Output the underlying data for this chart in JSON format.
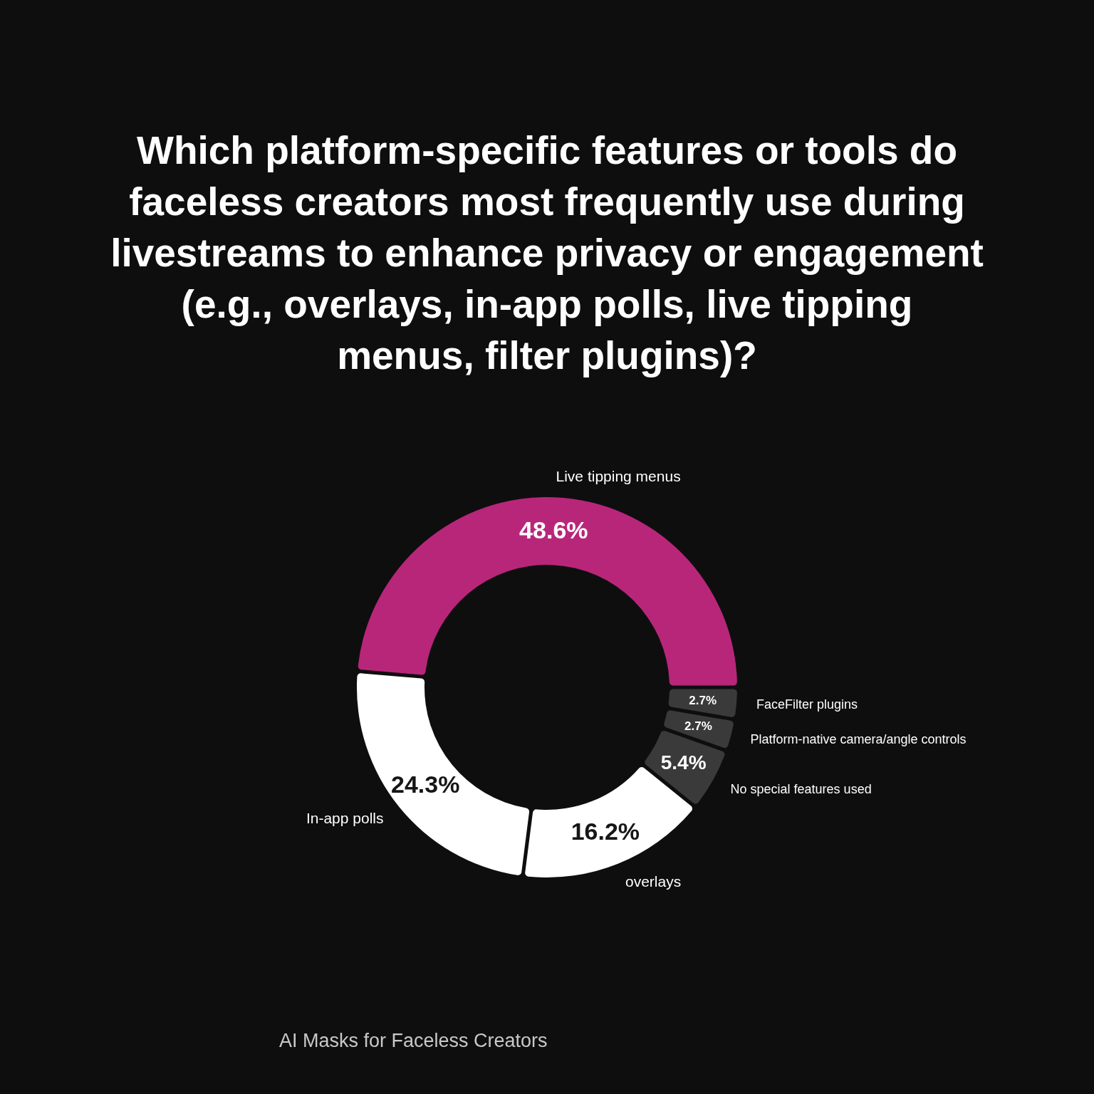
{
  "chart_data": {
    "type": "donut",
    "title": "Which platform-specific features or tools do faceless creators most frequently use during livestreams to enhance privacy or engagement (e.g., overlays, in-app polls, live tipping menus, filter plugins)?",
    "categories": [
      "Live tipping menus",
      "FaceFilter plugins",
      "Platform-native camera/angle controls",
      "No special features used",
      "overlays",
      "In-app polls"
    ],
    "values": [
      48.6,
      2.7,
      2.7,
      5.4,
      16.2,
      24.3
    ],
    "colors": [
      "#b8267a",
      "#3a3a3a",
      "#3a3a3a",
      "#3a3a3a",
      "#ffffff",
      "#ffffff"
    ],
    "value_labels": [
      "48.6%",
      "2.7%",
      "2.7%",
      "5.4%",
      "16.2%",
      "24.3%"
    ],
    "annotations": [
      "AI Masks for Faceless Creators"
    ]
  }
}
